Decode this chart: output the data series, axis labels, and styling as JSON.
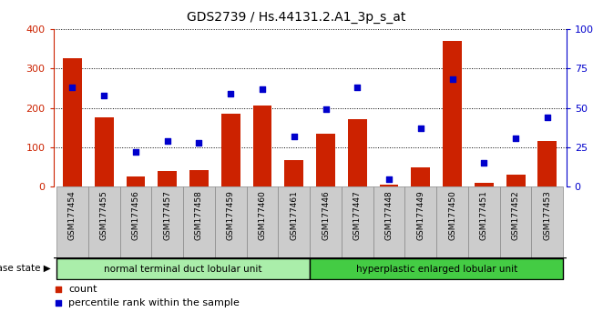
{
  "title": "GDS2739 / Hs.44131.2.A1_3p_s_at",
  "samples": [
    "GSM177454",
    "GSM177455",
    "GSM177456",
    "GSM177457",
    "GSM177458",
    "GSM177459",
    "GSM177460",
    "GSM177461",
    "GSM177446",
    "GSM177447",
    "GSM177448",
    "GSM177449",
    "GSM177450",
    "GSM177451",
    "GSM177452",
    "GSM177453"
  ],
  "counts": [
    325,
    175,
    27,
    40,
    42,
    185,
    205,
    68,
    135,
    172,
    5,
    50,
    370,
    10,
    30,
    115
  ],
  "percentiles": [
    63,
    58,
    22,
    29,
    28,
    59,
    62,
    32,
    49,
    63,
    5,
    37,
    68,
    15,
    31,
    44
  ],
  "group1_label": "normal terminal duct lobular unit",
  "group1_count": 8,
  "group2_label": "hyperplastic enlarged lobular unit",
  "group2_count": 8,
  "disease_state_label": "disease state",
  "ylim_left": [
    0,
    400
  ],
  "ylim_right": [
    0,
    100
  ],
  "yticks_left": [
    0,
    100,
    200,
    300,
    400
  ],
  "yticks_right": [
    0,
    25,
    50,
    75,
    100
  ],
  "yticklabels_right": [
    "0",
    "25",
    "50",
    "75",
    "100%"
  ],
  "bar_color": "#cc2200",
  "dot_color": "#0000cc",
  "group1_color": "#aaeeaa",
  "group2_color": "#44cc44",
  "legend_count_label": "count",
  "legend_pct_label": "percentile rank within the sample"
}
